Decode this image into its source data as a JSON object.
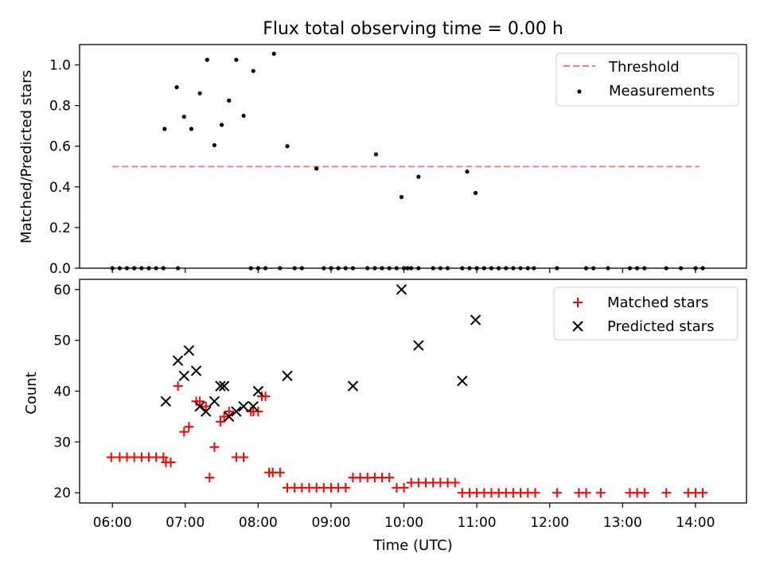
{
  "figure_title": "Flux total observing time = 0.00 h",
  "chart_data": [
    {
      "type": "scatter",
      "ylabel": "Matched/Predicted stars",
      "ylim": [
        0,
        1.1
      ],
      "xlim": [
        "05:33",
        "14:42"
      ],
      "x_ticks": [
        "06:00",
        "07:00",
        "08:00",
        "09:00",
        "10:00",
        "11:00",
        "12:00",
        "13:00",
        "14:00"
      ],
      "y_ticks": [
        "0.0",
        "0.2",
        "0.4",
        "0.6",
        "0.8",
        "1.0"
      ],
      "legend": {
        "position": "upper right",
        "entries": [
          "Threshold",
          "Measurements"
        ]
      },
      "threshold": {
        "name": "Threshold",
        "color": "#ff7f7f",
        "style": "dashed",
        "x": [
          "06:00",
          "14:03"
        ],
        "y": 0.5
      },
      "series": [
        {
          "name": "Measurements",
          "color": "#000000",
          "marker": "dot",
          "points": [
            [
              "06:00",
              0
            ],
            [
              "06:06",
              0
            ],
            [
              "06:12",
              0
            ],
            [
              "06:18",
              0
            ],
            [
              "06:24",
              0
            ],
            [
              "06:30",
              0
            ],
            [
              "06:36",
              0
            ],
            [
              "06:42",
              0
            ],
            [
              "06:54",
              0
            ],
            [
              "06:43",
              0.685
            ],
            [
              "06:53",
              0.89
            ],
            [
              "06:59",
              0.745
            ],
            [
              "07:05",
              0.685
            ],
            [
              "07:12",
              0.86
            ],
            [
              "07:18",
              1.025
            ],
            [
              "07:24",
              0.605
            ],
            [
              "07:30",
              0.705
            ],
            [
              "07:36",
              0.825
            ],
            [
              "07:42",
              1.025
            ],
            [
              "07:48",
              0.75
            ],
            [
              "07:54",
              0
            ],
            [
              "07:56",
              0.97
            ],
            [
              "08:00",
              0
            ],
            [
              "08:06",
              0
            ],
            [
              "08:13",
              1.055
            ],
            [
              "08:18",
              0
            ],
            [
              "08:24",
              0.6
            ],
            [
              "08:30",
              0
            ],
            [
              "08:36",
              0
            ],
            [
              "08:48",
              0.49
            ],
            [
              "08:54",
              0
            ],
            [
              "09:00",
              0
            ],
            [
              "09:06",
              0
            ],
            [
              "09:12",
              0
            ],
            [
              "09:18",
              0
            ],
            [
              "09:30",
              0
            ],
            [
              "09:36",
              0
            ],
            [
              "09:42",
              0
            ],
            [
              "09:48",
              0
            ],
            [
              "09:54",
              0
            ],
            [
              "09:37",
              0.56
            ],
            [
              "10:00",
              0
            ],
            [
              "10:06",
              0
            ],
            [
              "10:12",
              0
            ],
            [
              "10:24",
              0
            ],
            [
              "10:30",
              0
            ],
            [
              "10:36",
              0
            ],
            [
              "10:48",
              0
            ],
            [
              "10:54",
              0
            ],
            [
              "09:58",
              0.35
            ],
            [
              "10:03",
              0
            ],
            [
              "10:12",
              0.45
            ],
            [
              "11:00",
              0
            ],
            [
              "11:06",
              0
            ],
            [
              "11:12",
              0
            ],
            [
              "11:18",
              0
            ],
            [
              "11:24",
              0
            ],
            [
              "11:30",
              0
            ],
            [
              "11:36",
              0
            ],
            [
              "11:42",
              0
            ],
            [
              "10:52",
              0.475
            ],
            [
              "10:59",
              0.37
            ],
            [
              "11:47",
              0
            ],
            [
              "12:06",
              0
            ],
            [
              "12:30",
              0
            ],
            [
              "12:36",
              0
            ],
            [
              "12:48",
              0
            ],
            [
              "13:06",
              0
            ],
            [
              "13:12",
              0
            ],
            [
              "13:18",
              0
            ],
            [
              "13:36",
              0
            ],
            [
              "13:48",
              0
            ],
            [
              "14:00",
              0
            ],
            [
              "14:06",
              0
            ]
          ]
        }
      ]
    },
    {
      "type": "scatter",
      "xlabel": "Time (UTC)",
      "ylabel": "Count",
      "ylim": [
        18,
        62
      ],
      "xlim": [
        "05:33",
        "14:42"
      ],
      "x_ticks": [
        "06:00",
        "07:00",
        "08:00",
        "09:00",
        "10:00",
        "11:00",
        "12:00",
        "13:00",
        "14:00"
      ],
      "y_ticks": [
        "20",
        "30",
        "40",
        "50",
        "60"
      ],
      "legend": {
        "position": "upper right",
        "entries": [
          "Matched stars",
          "Predicted stars"
        ]
      },
      "series": [
        {
          "name": "Matched stars",
          "color": "#ff0000",
          "marker": "plus",
          "points": [
            [
              "05:59",
              27
            ],
            [
              "06:06",
              27
            ],
            [
              "06:12",
              27
            ],
            [
              "06:18",
              27
            ],
            [
              "06:24",
              27
            ],
            [
              "06:30",
              27
            ],
            [
              "06:36",
              27
            ],
            [
              "06:42",
              27
            ],
            [
              "06:44",
              26
            ],
            [
              "06:48",
              26
            ],
            [
              "06:54",
              41
            ],
            [
              "06:59",
              32
            ],
            [
              "07:03",
              33
            ],
            [
              "07:09",
              38
            ],
            [
              "07:12",
              38
            ],
            [
              "07:17",
              37
            ],
            [
              "07:20",
              23
            ],
            [
              "07:24",
              29
            ],
            [
              "07:29",
              34
            ],
            [
              "07:32",
              35
            ],
            [
              "07:36",
              36
            ],
            [
              "07:42",
              27
            ],
            [
              "07:48",
              27
            ],
            [
              "07:54",
              36
            ],
            [
              "07:56",
              36
            ],
            [
              "08:00",
              36
            ],
            [
              "08:03",
              39
            ],
            [
              "08:06",
              39
            ],
            [
              "08:09",
              24
            ],
            [
              "08:12",
              24
            ],
            [
              "08:18",
              24
            ],
            [
              "08:24",
              21
            ],
            [
              "08:30",
              21
            ],
            [
              "08:36",
              21
            ],
            [
              "08:42",
              21
            ],
            [
              "08:48",
              21
            ],
            [
              "08:54",
              21
            ],
            [
              "09:00",
              21
            ],
            [
              "09:06",
              21
            ],
            [
              "09:12",
              21
            ],
            [
              "09:18",
              23
            ],
            [
              "09:24",
              23
            ],
            [
              "09:30",
              23
            ],
            [
              "09:36",
              23
            ],
            [
              "09:42",
              23
            ],
            [
              "09:48",
              23
            ],
            [
              "09:54",
              21
            ],
            [
              "10:00",
              21
            ],
            [
              "10:06",
              22
            ],
            [
              "10:12",
              22
            ],
            [
              "10:18",
              22
            ],
            [
              "10:24",
              22
            ],
            [
              "10:30",
              22
            ],
            [
              "10:36",
              22
            ],
            [
              "10:42",
              22
            ],
            [
              "10:48",
              20
            ],
            [
              "10:54",
              20
            ],
            [
              "11:00",
              20
            ],
            [
              "11:06",
              20
            ],
            [
              "11:12",
              20
            ],
            [
              "11:18",
              20
            ],
            [
              "11:24",
              20
            ],
            [
              "11:30",
              20
            ],
            [
              "11:36",
              20
            ],
            [
              "11:42",
              20
            ],
            [
              "11:48",
              20
            ],
            [
              "12:06",
              20
            ],
            [
              "12:24",
              20
            ],
            [
              "12:30",
              20
            ],
            [
              "12:42",
              20
            ],
            [
              "13:06",
              20
            ],
            [
              "13:12",
              20
            ],
            [
              "13:18",
              20
            ],
            [
              "13:36",
              20
            ],
            [
              "13:54",
              20
            ],
            [
              "14:00",
              20
            ],
            [
              "14:06",
              20
            ]
          ]
        },
        {
          "name": "Predicted stars",
          "color": "#000000",
          "marker": "x",
          "points": [
            [
              "06:44",
              38
            ],
            [
              "06:54",
              46
            ],
            [
              "06:59",
              43
            ],
            [
              "07:03",
              48
            ],
            [
              "07:09",
              44
            ],
            [
              "07:12",
              37
            ],
            [
              "07:17",
              36
            ],
            [
              "07:24",
              38
            ],
            [
              "07:29",
              41
            ],
            [
              "07:32",
              41
            ],
            [
              "07:36",
              35
            ],
            [
              "07:42",
              36
            ],
            [
              "07:48",
              37
            ],
            [
              "07:56",
              37
            ],
            [
              "08:00",
              40
            ],
            [
              "08:24",
              43
            ],
            [
              "09:18",
              41
            ],
            [
              "09:58",
              60
            ],
            [
              "10:12",
              49
            ],
            [
              "10:48",
              42
            ],
            [
              "10:59",
              54
            ]
          ]
        }
      ]
    }
  ]
}
